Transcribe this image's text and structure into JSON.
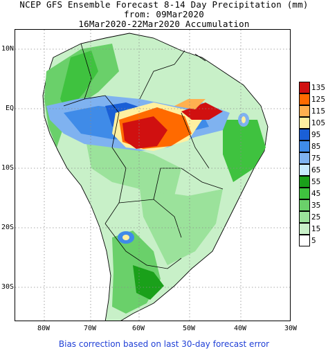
{
  "title": {
    "line1": "NCEP GFS Ensemble Forecast 8-14 Day Precipitation (mm)",
    "line2": "from: 09Mar2020",
    "line3": "16Mar2020-22Mar2020 Accumulation"
  },
  "lat_labels": [
    "10N",
    "EQ",
    "10S",
    "20S",
    "30S"
  ],
  "lon_labels": [
    "80W",
    "70W",
    "60W",
    "50W",
    "40W",
    "30W"
  ],
  "legend": {
    "labels": [
      "135",
      "125",
      "115",
      "105",
      "95",
      "85",
      "75",
      "65",
      "55",
      "45",
      "35",
      "25",
      "15",
      "5"
    ],
    "colors": [
      "#d01010",
      "#ff6a00",
      "#ffb050",
      "#fff0a0",
      "#1a5fd6",
      "#3f8be8",
      "#7fb2f0",
      "#c8eaff",
      "#1aa01a",
      "#3fc23f",
      "#6ad06a",
      "#9be29b",
      "#c8f0c8",
      "#ffffff"
    ]
  },
  "footer": "Bias correction based on last 30-day forecast error"
}
